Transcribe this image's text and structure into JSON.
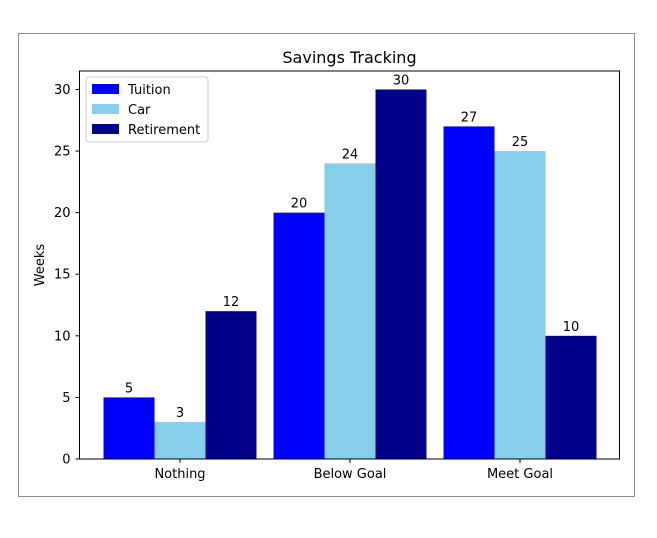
{
  "chart_data": {
    "type": "bar",
    "title": "Savings Tracking",
    "xlabel": "",
    "ylabel": "Weeks",
    "categories": [
      "Nothing",
      "Below Goal",
      "Meet Goal"
    ],
    "series": [
      {
        "name": "Tuition",
        "color": "#0000ff",
        "values": [
          5,
          20,
          27
        ]
      },
      {
        "name": "Car",
        "color": "#87ceeb",
        "values": [
          3,
          24,
          25
        ]
      },
      {
        "name": "Retirement",
        "color": "#00008b",
        "values": [
          12,
          30,
          10
        ]
      }
    ],
    "ylim": [
      0,
      31.5
    ],
    "yticks": [
      0,
      5,
      10,
      15,
      20,
      25,
      30
    ],
    "legend_position": "top-left",
    "grid": false
  }
}
